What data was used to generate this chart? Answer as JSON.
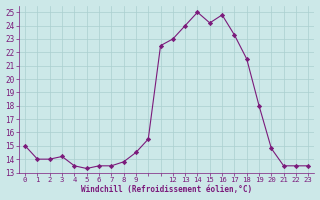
{
  "hours": [
    0,
    1,
    2,
    3,
    4,
    5,
    6,
    7,
    8,
    9,
    10,
    11,
    12,
    13,
    14,
    15,
    16,
    17,
    18,
    19,
    20,
    21,
    22,
    23
  ],
  "values": [
    15.0,
    14.0,
    14.0,
    14.2,
    13.5,
    13.3,
    13.5,
    13.5,
    13.8,
    14.5,
    15.5,
    22.5,
    23.0,
    24.0,
    25.0,
    24.2,
    24.8,
    23.3,
    21.5,
    18.0,
    14.8,
    13.5,
    13.5,
    13.5
  ],
  "line_color": "#7b1a7b",
  "marker": "D",
  "marker_size": 2.2,
  "bg_color": "#cce8e8",
  "grid_color": "#aacfcf",
  "xlabel": "Windchill (Refroidissement éolien,°C)",
  "xlabel_color": "#7b1a7b",
  "tick_color": "#7b1a7b",
  "ylim": [
    13,
    25.5
  ],
  "xlim": [
    -0.5,
    23.5
  ],
  "yticks": [
    13,
    14,
    15,
    16,
    17,
    18,
    19,
    20,
    21,
    22,
    23,
    24,
    25
  ],
  "xtick_labels": [
    "0",
    "1",
    "2",
    "3",
    "4",
    "5",
    "6",
    "7",
    "8",
    "9",
    "",
    "",
    "12",
    "13",
    "14",
    "15",
    "16",
    "17",
    "18",
    "19",
    "20",
    "21",
    "22",
    "23"
  ],
  "xticks": [
    0,
    1,
    2,
    3,
    4,
    5,
    6,
    7,
    8,
    9,
    10,
    11,
    12,
    13,
    14,
    15,
    16,
    17,
    18,
    19,
    20,
    21,
    22,
    23
  ]
}
